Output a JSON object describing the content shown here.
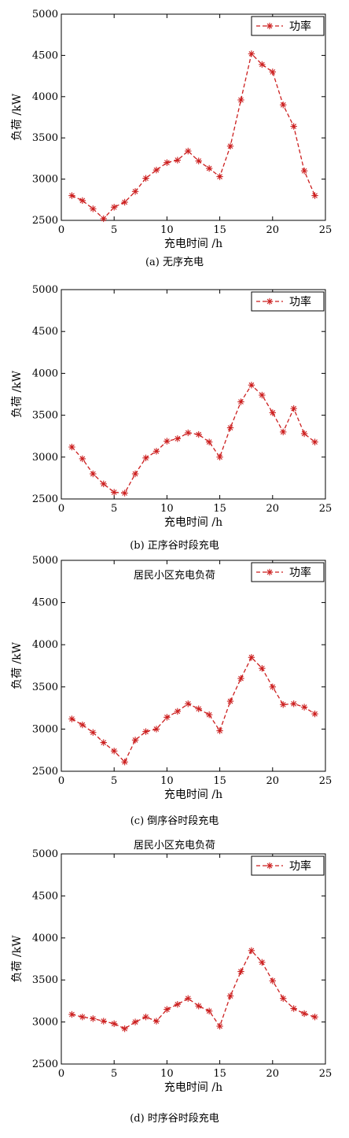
{
  "chart_data": [
    {
      "type": "line",
      "caption": "(a) 无序充电",
      "title": "",
      "xlabel": "充电时间 /h",
      "ylabel": "负荷 /kW",
      "xlim": [
        0,
        25
      ],
      "ylim": [
        2500,
        5000
      ],
      "xticks": [
        "0",
        "5",
        "10",
        "15",
        "20",
        "25"
      ],
      "yticks": [
        "2500",
        "3000",
        "3500",
        "4000",
        "4500",
        "5000"
      ],
      "legend": "top-right",
      "color": "#cc1f1f",
      "series": [
        {
          "name": "功率",
          "x": [
            1,
            2,
            3,
            4,
            5,
            6,
            7,
            8,
            9,
            10,
            11,
            12,
            13,
            14,
            15,
            16,
            17,
            18,
            19,
            20,
            21,
            22,
            23,
            24
          ],
          "values": [
            2800,
            2740,
            2640,
            2520,
            2660,
            2720,
            2850,
            3010,
            3110,
            3200,
            3230,
            3340,
            3220,
            3130,
            3030,
            3400,
            3960,
            4520,
            4390,
            4300,
            3900,
            3640,
            3100,
            2800
          ]
        }
      ]
    },
    {
      "type": "line",
      "caption": "(b) 正序谷时段充电",
      "title": "",
      "xlabel": "充电时间 /h",
      "ylabel": "负荷 /kW",
      "xlim": [
        0,
        25
      ],
      "ylim": [
        2500,
        5000
      ],
      "xticks": [
        "0",
        "5",
        "10",
        "15",
        "20",
        "25"
      ],
      "yticks": [
        "2500",
        "3000",
        "3500",
        "4000",
        "4500",
        "5000"
      ],
      "legend": "top-right",
      "color": "#cc1f1f",
      "series": [
        {
          "name": "功率",
          "x": [
            1,
            2,
            3,
            4,
            5,
            6,
            7,
            8,
            9,
            10,
            11,
            12,
            13,
            14,
            15,
            16,
            17,
            18,
            19,
            20,
            21,
            22,
            23,
            24
          ],
          "values": [
            3120,
            2980,
            2800,
            2680,
            2580,
            2570,
            2800,
            2990,
            3070,
            3190,
            3220,
            3290,
            3270,
            3180,
            3000,
            3350,
            3660,
            3860,
            3740,
            3530,
            3300,
            3580,
            3280,
            3180
          ]
        }
      ]
    },
    {
      "type": "line",
      "caption": "(c) 倒序谷时段充电",
      "title": "居民小区充电负荷",
      "xlabel": "充电时间 /h",
      "ylabel": "负荷 /kW",
      "xlim": [
        0,
        25
      ],
      "ylim": [
        2500,
        5000
      ],
      "xticks": [
        "0",
        "5",
        "10",
        "15",
        "20",
        "25"
      ],
      "yticks": [
        "2500",
        "3000",
        "3500",
        "4000",
        "4500",
        "5000"
      ],
      "legend": "top-right",
      "color": "#cc1f1f",
      "series": [
        {
          "name": "功率",
          "x": [
            1,
            2,
            3,
            4,
            5,
            6,
            7,
            8,
            9,
            10,
            11,
            12,
            13,
            14,
            15,
            16,
            17,
            18,
            19,
            20,
            21,
            22,
            23,
            24
          ],
          "values": [
            3120,
            3050,
            2960,
            2840,
            2740,
            2610,
            2870,
            2970,
            3000,
            3140,
            3210,
            3300,
            3240,
            3170,
            2980,
            3330,
            3600,
            3850,
            3720,
            3500,
            3290,
            3300,
            3260,
            3180
          ]
        }
      ]
    },
    {
      "type": "line",
      "caption": "(d) 时序谷时段充电",
      "title": "居民小区充电负荷",
      "xlabel": "充电时间 /h",
      "ylabel": "负荷 /kW",
      "xlim": [
        0,
        25
      ],
      "ylim": [
        2500,
        5000
      ],
      "xticks": [
        "0",
        "5",
        "10",
        "15",
        "20",
        "25"
      ],
      "yticks": [
        "2500",
        "3000",
        "3500",
        "4000",
        "4500",
        "5000"
      ],
      "legend": "top-right",
      "color": "#cc1f1f",
      "series": [
        {
          "name": "功率",
          "x": [
            1,
            2,
            3,
            4,
            5,
            6,
            7,
            8,
            9,
            10,
            11,
            12,
            13,
            14,
            15,
            16,
            17,
            18,
            19,
            20,
            21,
            22,
            23,
            24
          ],
          "values": [
            3090,
            3060,
            3040,
            3010,
            2980,
            2920,
            3000,
            3060,
            3010,
            3150,
            3210,
            3280,
            3190,
            3130,
            2950,
            3310,
            3600,
            3850,
            3710,
            3490,
            3280,
            3160,
            3100,
            3060
          ]
        }
      ]
    }
  ]
}
